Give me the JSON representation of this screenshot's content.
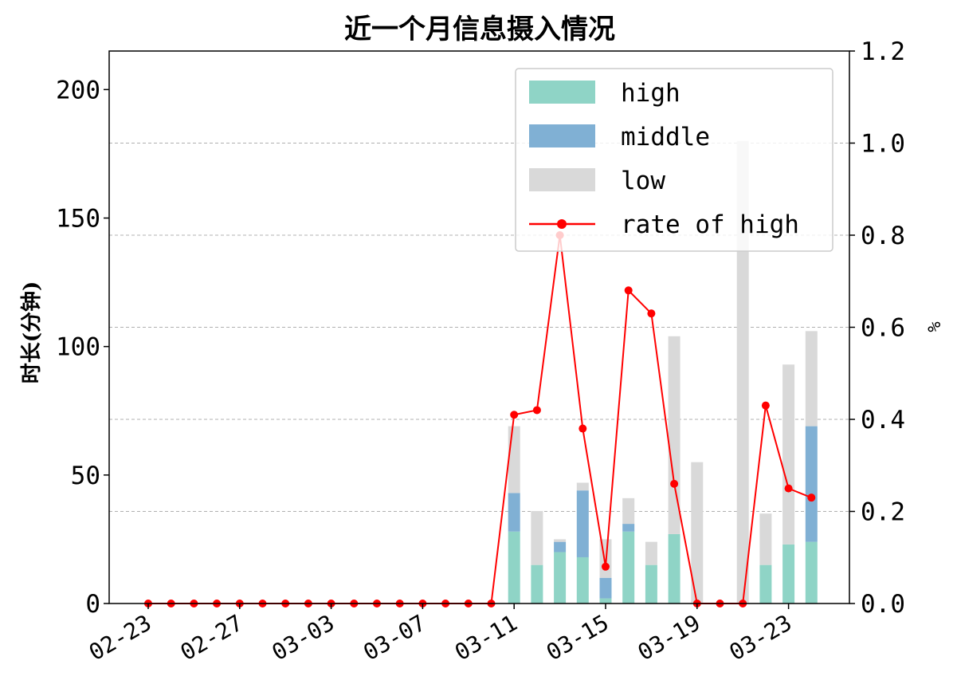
{
  "chart_data": {
    "type": "bar",
    "title": "近一个月信息摄入情况",
    "ylabel": "时长(分钟)",
    "y2label": "%",
    "ylim": [
      0,
      215
    ],
    "y2lim": [
      0,
      1.2
    ],
    "yticks": [
      0,
      50,
      100,
      150,
      200
    ],
    "y2ticks": [
      "0.0",
      "0.2",
      "0.4",
      "0.6",
      "0.8",
      "1.0",
      "1.2"
    ],
    "xtick_labels": [
      "02-23",
      "02-27",
      "03-03",
      "03-07",
      "03-11",
      "03-15",
      "03-19",
      "03-23"
    ],
    "grid": "horizontal dashed (right axis ticks)",
    "legend_position": "upper-right",
    "categories": [
      "02-23",
      "02-24",
      "02-25",
      "02-26",
      "02-27",
      "02-28",
      "03-01",
      "03-02",
      "03-03",
      "03-04",
      "03-05",
      "03-06",
      "03-07",
      "03-08",
      "03-09",
      "03-10",
      "03-11",
      "03-12",
      "03-13",
      "03-14",
      "03-15",
      "03-16",
      "03-17",
      "03-18",
      "03-19",
      "03-20",
      "03-21",
      "03-22",
      "03-23",
      "03-24"
    ],
    "series": [
      {
        "name": "high",
        "kind": "bar",
        "color": "#8fd4c6",
        "values": [
          0,
          0,
          0,
          0,
          0,
          0,
          0,
          0,
          0,
          0,
          0,
          0,
          0,
          0,
          0,
          0,
          28,
          15,
          20,
          18,
          2,
          28,
          15,
          27,
          0,
          0,
          0,
          15,
          23,
          24
        ]
      },
      {
        "name": "middle",
        "kind": "bar",
        "color": "#80b0d4",
        "values": [
          0,
          0,
          0,
          0,
          0,
          0,
          0,
          0,
          0,
          0,
          0,
          0,
          0,
          0,
          0,
          0,
          15,
          0,
          4,
          26,
          8,
          3,
          0,
          0,
          0,
          0,
          0,
          0,
          0,
          45
        ]
      },
      {
        "name": "low",
        "kind": "bar",
        "color": "#d9d9d9",
        "values": [
          0,
          0,
          0,
          0,
          0,
          0,
          0,
          0,
          0,
          0,
          0,
          0,
          0,
          0,
          0,
          0,
          26,
          21,
          1,
          3,
          15,
          10,
          9,
          77,
          55,
          0,
          180,
          20,
          70,
          37
        ]
      },
      {
        "name": "rate of high",
        "kind": "line",
        "axis": "right",
        "color": "#ff0000",
        "values": [
          0,
          0,
          0,
          0,
          0,
          0,
          0,
          0,
          0,
          0,
          0,
          0,
          0,
          0,
          0,
          0,
          0.41,
          0.42,
          0.8,
          0.38,
          0.08,
          0.68,
          0.63,
          0.26,
          0,
          0,
          0,
          0.43,
          0.25,
          0.23
        ]
      }
    ]
  }
}
